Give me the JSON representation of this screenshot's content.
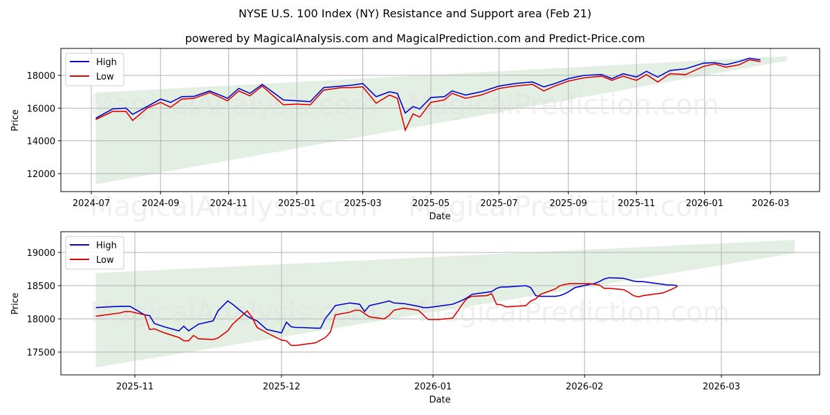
{
  "title": "NYSE U.S. 100 Index (NY) Resistance and Support area (Feb 21)",
  "subtitle": "powered by MagicalAnalysis.com and MagicalPrediction.com and Predict-Price.com",
  "watermarks": [
    "MagicalAnalysis.com",
    "MagicalPrediction.com"
  ],
  "colors": {
    "high": "#0000cc",
    "low": "#dd0000",
    "band": "#e3efe3",
    "grid": "#b0b0b0"
  },
  "chart_data": [
    {
      "type": "line",
      "title": "Full history",
      "xlabel": "Date",
      "ylabel": "Price",
      "x_ticks": [
        "2024-07",
        "2024-09",
        "2024-11",
        "2025-01",
        "2025-03",
        "2025-05",
        "2025-07",
        "2025-09",
        "2025-11",
        "2026-01",
        "2026-03"
      ],
      "y_ticks": [
        12000,
        14000,
        16000,
        18000
      ],
      "ylim": [
        10900,
        19700
      ],
      "grid": true,
      "legend": {
        "position": "upper left",
        "entries": [
          "High",
          "Low"
        ]
      },
      "band": {
        "x_start": "2024-07-05",
        "x_end": "2026-03-16",
        "lower": [
          11350,
          18900
        ],
        "upper": [
          16950,
          19180
        ]
      },
      "x": [
        "2024-07-05",
        "2024-07-20",
        "2024-08-01",
        "2024-08-07",
        "2024-08-20",
        "2024-09-01",
        "2024-09-10",
        "2024-09-20",
        "2024-10-01",
        "2024-10-15",
        "2024-10-31",
        "2024-11-10",
        "2024-11-20",
        "2024-12-01",
        "2024-12-10",
        "2024-12-20",
        "2025-01-01",
        "2025-01-13",
        "2025-01-25",
        "2025-02-10",
        "2025-02-19",
        "2025-03-01",
        "2025-03-13",
        "2025-03-25",
        "2025-04-01",
        "2025-04-08",
        "2025-04-15",
        "2025-04-21",
        "2025-05-01",
        "2025-05-13",
        "2025-05-20",
        "2025-06-01",
        "2025-06-15",
        "2025-07-01",
        "2025-07-15",
        "2025-07-31",
        "2025-08-10",
        "2025-08-20",
        "2025-09-01",
        "2025-09-15",
        "2025-10-01",
        "2025-10-10",
        "2025-10-20",
        "2025-11-01",
        "2025-11-10",
        "2025-11-20",
        "2025-12-01",
        "2025-12-15",
        "2025-12-31",
        "2026-01-10",
        "2026-01-20",
        "2026-02-01",
        "2026-02-10",
        "2026-02-20"
      ],
      "series": [
        {
          "name": "High",
          "values": [
            15380,
            15950,
            16000,
            15620,
            16100,
            16550,
            16350,
            16700,
            16720,
            17050,
            16600,
            17200,
            16900,
            17450,
            17000,
            16500,
            16450,
            16400,
            17250,
            17350,
            17400,
            17500,
            16700,
            17000,
            16900,
            15700,
            16100,
            15950,
            16650,
            16700,
            17050,
            16800,
            17000,
            17350,
            17500,
            17600,
            17300,
            17500,
            17800,
            18000,
            18050,
            17800,
            18100,
            17900,
            18250,
            17900,
            18300,
            18400,
            18750,
            18780,
            18650,
            18850,
            19050,
            18950
          ]
        },
        {
          "name": "Low",
          "values": [
            15300,
            15800,
            15800,
            15250,
            16000,
            16350,
            16050,
            16550,
            16600,
            16950,
            16450,
            17050,
            16750,
            17350,
            16800,
            16200,
            16250,
            16200,
            17100,
            17250,
            17250,
            17300,
            16300,
            16800,
            16600,
            14650,
            15650,
            15450,
            16350,
            16500,
            16900,
            16600,
            16800,
            17200,
            17350,
            17450,
            17050,
            17350,
            17650,
            17850,
            17950,
            17700,
            17950,
            17700,
            18050,
            17600,
            18100,
            18050,
            18550,
            18700,
            18500,
            18650,
            18950,
            18850
          ]
        }
      ]
    },
    {
      "type": "line",
      "title": "Recent detail",
      "xlabel": "Date",
      "ylabel": "Price",
      "x_ticks": [
        "2025-11",
        "2025-12",
        "2026-01",
        "2026-02",
        "2026-03"
      ],
      "y_ticks": [
        17500,
        18000,
        18500,
        19000
      ],
      "ylim": [
        17160,
        19310
      ],
      "grid": true,
      "legend": {
        "position": "upper left",
        "entries": [
          "High",
          "Low"
        ]
      },
      "band": {
        "x_start": "2025-10-24",
        "x_end": "2026-03-16",
        "lower": [
          17270,
          18990
        ],
        "upper": [
          18690,
          19190
        ]
      },
      "x": [
        "2025-10-24",
        "2025-10-29",
        "2025-10-30",
        "2025-10-31",
        "2025-11-03",
        "2025-11-04",
        "2025-11-05",
        "2025-11-07",
        "2025-11-10",
        "2025-11-11",
        "2025-11-12",
        "2025-11-13",
        "2025-11-14",
        "2025-11-17",
        "2025-11-18",
        "2025-11-20",
        "2025-11-21",
        "2025-11-24",
        "2025-11-25",
        "2025-11-26",
        "2025-11-28",
        "2025-12-01",
        "2025-12-02",
        "2025-12-03",
        "2025-12-04",
        "2025-12-05",
        "2025-12-08",
        "2025-12-09",
        "2025-12-10",
        "2025-12-11",
        "2025-12-12",
        "2025-12-15",
        "2025-12-16",
        "2025-12-17",
        "2025-12-18",
        "2025-12-19",
        "2025-12-22",
        "2025-12-23",
        "2025-12-24",
        "2025-12-26",
        "2025-12-29",
        "2025-12-30",
        "2025-12-31",
        "2026-01-02",
        "2026-01-05",
        "2026-01-06",
        "2026-01-07",
        "2026-01-08",
        "2026-01-09",
        "2026-01-12",
        "2026-01-13",
        "2026-01-14",
        "2026-01-15",
        "2026-01-16",
        "2026-01-20",
        "2026-01-21",
        "2026-01-22",
        "2026-01-23",
        "2026-01-26",
        "2026-01-27",
        "2026-01-28",
        "2026-01-29",
        "2026-01-30",
        "2026-02-02",
        "2026-02-03",
        "2026-02-04",
        "2026-02-05",
        "2026-02-06",
        "2026-02-09",
        "2026-02-10",
        "2026-02-11",
        "2026-02-12",
        "2026-02-13",
        "2026-02-17",
        "2026-02-18",
        "2026-02-19",
        "2026-02-20"
      ],
      "series": [
        {
          "name": "High",
          "values": [
            18170,
            18190,
            18190,
            18190,
            18060,
            18050,
            17930,
            17880,
            17820,
            17890,
            17820,
            17870,
            17920,
            17970,
            18120,
            18270,
            18220,
            18040,
            18000,
            17970,
            17840,
            17790,
            17950,
            17880,
            17870,
            17870,
            17860,
            17860,
            18010,
            18100,
            18200,
            18240,
            18230,
            18220,
            18110,
            18200,
            18250,
            18270,
            18240,
            18230,
            18190,
            18170,
            18170,
            18190,
            18220,
            18250,
            18280,
            18320,
            18370,
            18400,
            18410,
            18460,
            18480,
            18480,
            18500,
            18470,
            18350,
            18340,
            18340,
            18350,
            18380,
            18420,
            18470,
            18520,
            18530,
            18560,
            18600,
            18620,
            18610,
            18590,
            18570,
            18560,
            18560,
            18520,
            18510,
            18510,
            18500
          ]
        },
        {
          "name": "Low",
          "values": [
            18040,
            18090,
            18110,
            18110,
            18060,
            17840,
            17850,
            17790,
            17720,
            17670,
            17670,
            17750,
            17700,
            17690,
            17710,
            17820,
            17920,
            18120,
            18020,
            17870,
            17790,
            17680,
            17670,
            17600,
            17600,
            17610,
            17640,
            17680,
            17720,
            17800,
            18060,
            18100,
            18130,
            18130,
            18080,
            18030,
            18000,
            18050,
            18130,
            18160,
            18130,
            18060,
            17990,
            17990,
            18010,
            18110,
            18220,
            18310,
            18340,
            18350,
            18380,
            18220,
            18210,
            18180,
            18200,
            18270,
            18300,
            18370,
            18450,
            18500,
            18520,
            18530,
            18530,
            18530,
            18520,
            18510,
            18460,
            18460,
            18440,
            18400,
            18350,
            18330,
            18350,
            18390,
            18420,
            18450,
            18490
          ]
        }
      ]
    }
  ]
}
